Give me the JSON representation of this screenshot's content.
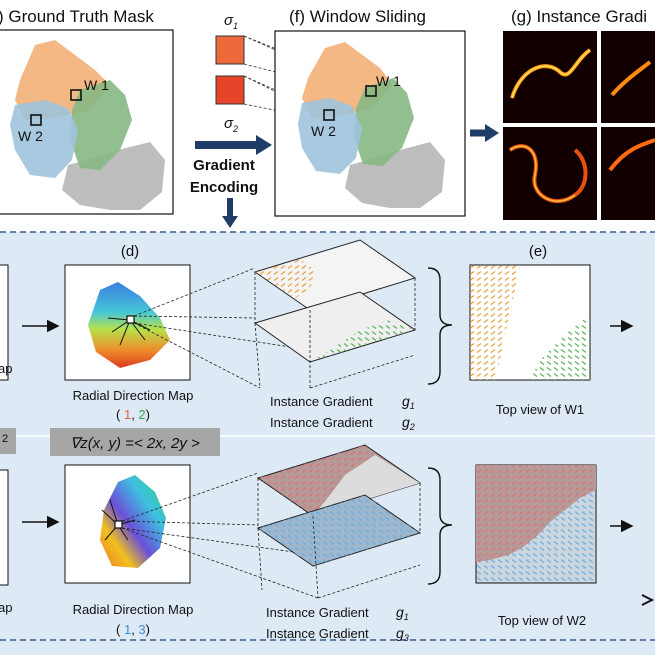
{
  "top": {
    "ground_truth_title": ") Ground Truth  Mask",
    "window_sliding_title": "(f) Window Sliding",
    "instance_gradient_title": "(g) Instance Gradi",
    "w1": "W 1",
    "w2": "W 2",
    "sigma1": "σ",
    "sigma1_sub": "1",
    "sigma2": "σ",
    "sigma2_sub": "2",
    "gradient_encoding_line1": "Gradient",
    "gradient_encoding_line2": "Encoding"
  },
  "row1": {
    "panel_label_d": "(d)",
    "panel_label_e": "(e)",
    "left_cut_label": "ap",
    "radial_label": "Radial Direction Map",
    "radial_idx_open": "( ",
    "radial_idx_a": "1",
    "radial_idx_sep": ", ",
    "radial_idx_b": "2",
    "radial_idx_close": ")",
    "inst_grad_a": "Instance Gradient",
    "g_a": "g",
    "g_a_sub": "1",
    "inst_grad_b": "Instance Gradient",
    "g_b": "g",
    "g_b_sub": "2",
    "top_view": "Top view of W1"
  },
  "formula_band": {
    "left_cut": "2",
    "formula": "∇z(x, y) =< 2x, 2y >"
  },
  "row2": {
    "left_cut_label": "ap",
    "radial_label": "Radial Direction Map",
    "radial_idx_open": "( ",
    "radial_idx_a": "1",
    "radial_idx_sep": ", ",
    "radial_idx_b": "3",
    "radial_idx_close": ")",
    "inst_grad_a": "Instance Gradient",
    "g_a": "g",
    "g_a_sub": "1",
    "inst_grad_b": "Instance Gradient",
    "g_b": "g",
    "g_b_sub": "3",
    "top_view": "Top view of W2"
  },
  "colors": {
    "orange_mask": "#f2b077",
    "blue_mask": "#9ec3dc",
    "green_mask": "#86b883",
    "gray_mask": "#bdbdbd",
    "idx1": "#e8603c",
    "idx2": "#3aa64a",
    "idx3": "#3a8fd6",
    "g1": "#e0a030",
    "g2": "#5db05a",
    "g3": "#4aa0e0",
    "panel_bg": "#dde9f5",
    "arrow_navy": "#1f3d66",
    "formula_bg": "#a6a6a6"
  }
}
